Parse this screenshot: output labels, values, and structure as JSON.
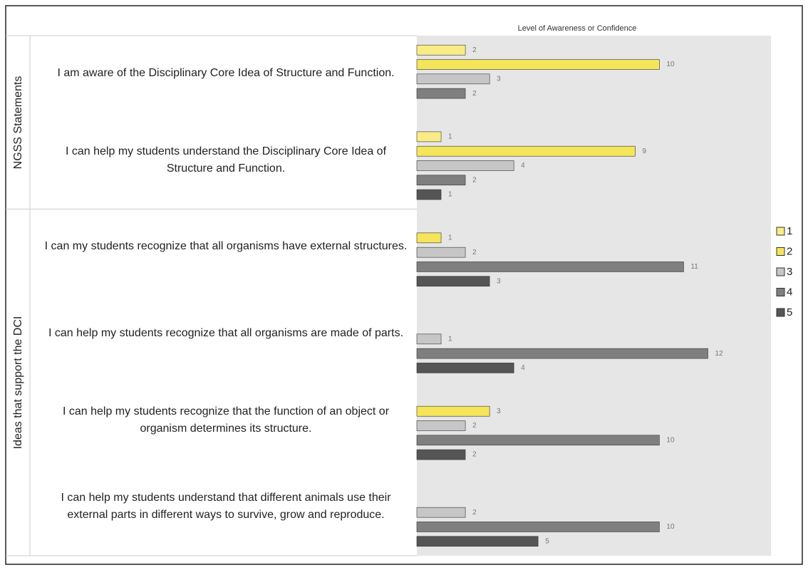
{
  "chart_data": {
    "type": "bar",
    "orientation": "horizontal",
    "title": "Level of Awareness or Confidence",
    "groups": [
      {
        "name": "NGSS Statements",
        "categories": [
          "I am aware of the Disciplinary Core Idea of Structure and Function.",
          "I can help my students understand the Disciplinary Core Idea of Structure and Function."
        ]
      },
      {
        "name": "Ideas that support the DCI",
        "categories": [
          "I can my students recognize that all organisms have external structures.",
          "I can help my students recognize that all organisms are made of parts.",
          "I can help my students recognize that the function of an object or organism determines its structure.",
          "I can help my students understand that different animals use their external parts in different ways to survive, grow and reproduce."
        ]
      }
    ],
    "series": [
      {
        "name": "1",
        "color": "#f9ec86",
        "values": [
          2,
          1,
          null,
          null,
          null,
          null
        ]
      },
      {
        "name": "2",
        "color": "#f4e55a",
        "values": [
          10,
          9,
          1,
          null,
          3,
          null
        ]
      },
      {
        "name": "3",
        "color": "#c6c6c6",
        "values": [
          3,
          4,
          2,
          1,
          2,
          2
        ]
      },
      {
        "name": "4",
        "color": "#7f7f7f",
        "values": [
          2,
          2,
          11,
          12,
          10,
          10
        ]
      },
      {
        "name": "5",
        "color": "#555555",
        "values": [
          null,
          1,
          3,
          4,
          2,
          5
        ]
      }
    ],
    "xlim": [
      0,
      14.6
    ],
    "legend": "right"
  }
}
